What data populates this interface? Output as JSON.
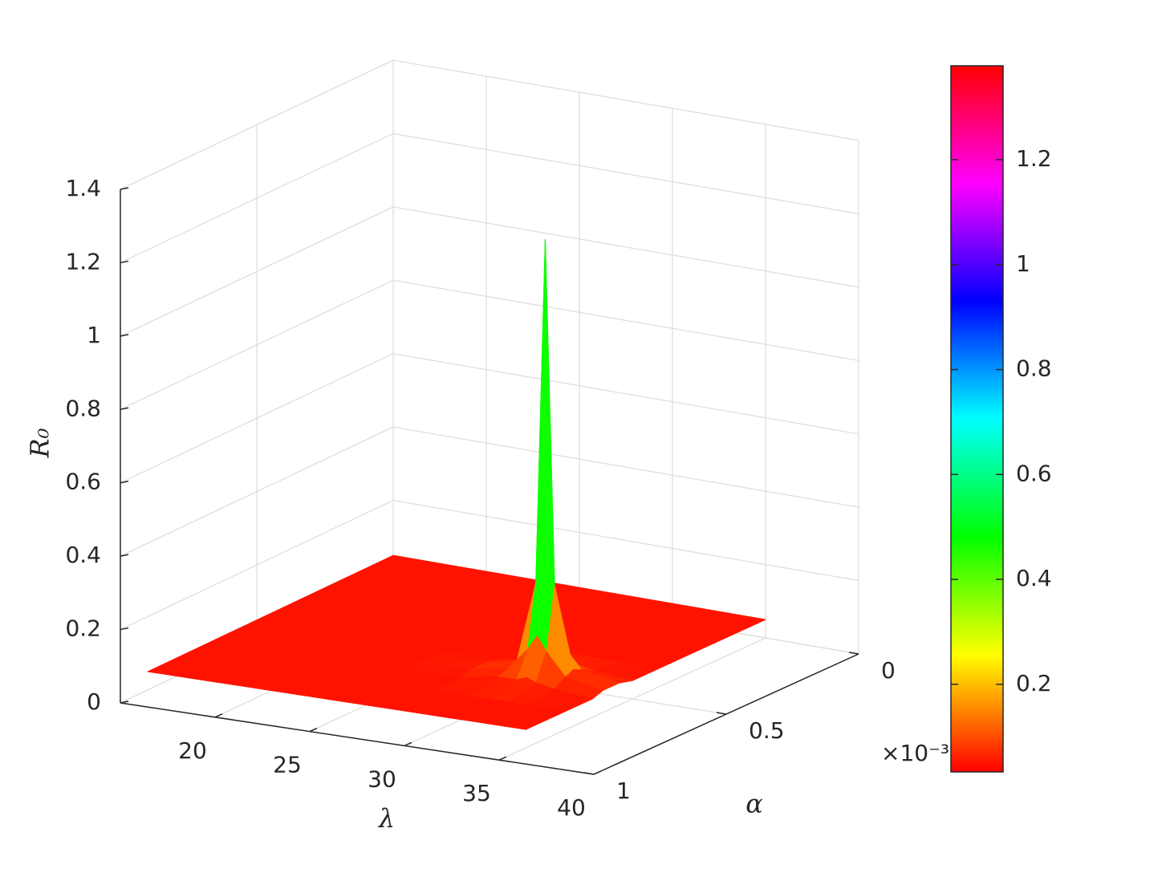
{
  "chart_data": {
    "type": "surface",
    "xlabel": "λ",
    "ylabel": "α",
    "zlabel": "R₀",
    "y_multiplier": "×10⁻³",
    "x": [
      15,
      20,
      25,
      28,
      30,
      31,
      31.5,
      32,
      33,
      35
    ],
    "y": [
      0,
      0.0002,
      0.0004,
      0.0005,
      0.00055,
      0.00058,
      0.00061,
      0.00065,
      0.00075,
      0.0009
    ],
    "z": [
      [
        0.05,
        0.05,
        0.05,
        0.05,
        0.05,
        0.05,
        0.05,
        0.05,
        0.05,
        0.05
      ],
      [
        0.05,
        0.05,
        0.05,
        0.05,
        0.05,
        0.05,
        0.05,
        0.05,
        0.05,
        0.05
      ],
      [
        0.05,
        0.05,
        0.05,
        0.05,
        0.05,
        0.05,
        0.05,
        0.05,
        0.05,
        0.05
      ],
      [
        0.05,
        0.05,
        0.05,
        0.05,
        0.06,
        0.07,
        0.07,
        0.07,
        0.06,
        0.05
      ],
      [
        0.05,
        0.05,
        0.05,
        0.06,
        0.08,
        0.14,
        0.18,
        0.14,
        0.08,
        0.06
      ],
      [
        0.05,
        0.05,
        0.05,
        0.06,
        0.09,
        0.31,
        1.25,
        0.31,
        0.09,
        0.06
      ],
      [
        0.05,
        0.05,
        0.05,
        0.06,
        0.08,
        0.14,
        0.18,
        0.14,
        0.08,
        0.06
      ],
      [
        0.05,
        0.05,
        0.05,
        0.05,
        0.07,
        0.07,
        0.08,
        0.07,
        0.06,
        0.05
      ],
      [
        0.05,
        0.05,
        0.05,
        0.05,
        0.05,
        0.05,
        0.05,
        0.05,
        0.05,
        0.05
      ],
      [
        0.05,
        0.05,
        0.05,
        0.05,
        0.05,
        0.05,
        0.05,
        0.05,
        0.05,
        0.05
      ]
    ],
    "xlim": [
      15,
      40
    ],
    "ylim": [
      0,
      0.001
    ],
    "zlim": [
      0,
      1.4
    ],
    "xticks": [
      20,
      25,
      30,
      35,
      40
    ],
    "yticks": [
      0,
      {
        "value": 0.0005,
        "label": "0.5"
      },
      {
        "value": 0.001,
        "label": "1"
      }
    ],
    "zticks": [
      0,
      0.2,
      0.4,
      0.6,
      0.8,
      1,
      1.2,
      1.4
    ],
    "colormap": "hsv",
    "grid": true,
    "colorbar": {
      "clim": [
        0.033,
        1.379
      ],
      "ticks": [
        0.2,
        0.4,
        0.6,
        0.8,
        1,
        1.2
      ]
    }
  }
}
